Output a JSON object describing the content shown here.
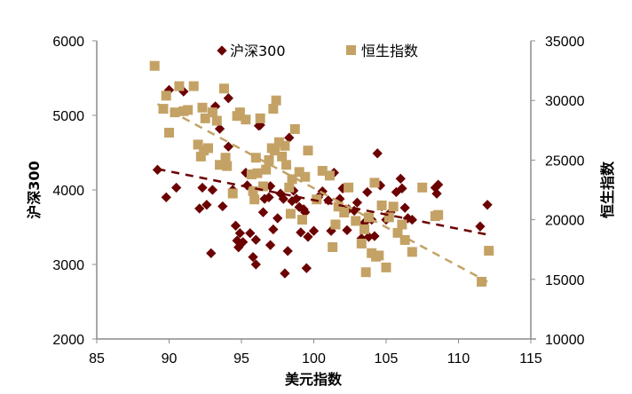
{
  "chart_data": {
    "type": "scatter",
    "title": "",
    "xlabel": "美元指数",
    "ylabel": "沪深300",
    "y2label": "恒生指数",
    "xlim": [
      85,
      115
    ],
    "ylim": [
      2000,
      6000
    ],
    "y2lim": [
      10000,
      35000
    ],
    "xticks": [
      85,
      90,
      95,
      100,
      105,
      110,
      115
    ],
    "yticks": [
      2000,
      3000,
      4000,
      5000,
      6000
    ],
    "y2ticks": [
      10000,
      15000,
      20000,
      25000,
      30000,
      35000
    ],
    "grid": false,
    "legend_position": "top",
    "legend": [
      "沪深300",
      "恒生指数"
    ],
    "colors": {
      "hs300": "#6b0000",
      "hsi": "#c4a265",
      "axis": "#8c8c8c"
    },
    "series": [
      {
        "name": "沪深300",
        "axis": "left",
        "marker": "diamond",
        "color": "#6b0000",
        "points": [
          [
            89.2,
            4270
          ],
          [
            89.8,
            3900
          ],
          [
            90.5,
            4030
          ],
          [
            90.0,
            5340
          ],
          [
            91.0,
            5320
          ],
          [
            92.1,
            3750
          ],
          [
            92.3,
            4030
          ],
          [
            92.6,
            3800
          ],
          [
            92.9,
            3150
          ],
          [
            93.0,
            4000
          ],
          [
            93.2,
            5120
          ],
          [
            93.5,
            4820
          ],
          [
            93.7,
            3780
          ],
          [
            94.1,
            5230
          ],
          [
            94.1,
            4580
          ],
          [
            94.4,
            4000
          ],
          [
            94.6,
            3520
          ],
          [
            94.7,
            3320
          ],
          [
            94.8,
            3230
          ],
          [
            94.9,
            3420
          ],
          [
            95.1,
            3300
          ],
          [
            95.3,
            4230
          ],
          [
            95.4,
            4060
          ],
          [
            95.6,
            3420
          ],
          [
            95.8,
            3100
          ],
          [
            96.0,
            3330
          ],
          [
            96.0,
            3000
          ],
          [
            96.2,
            4860
          ],
          [
            96.3,
            4870
          ],
          [
            96.5,
            3700
          ],
          [
            96.6,
            3880
          ],
          [
            96.9,
            3900
          ],
          [
            97.0,
            4050
          ],
          [
            97.0,
            3260
          ],
          [
            97.2,
            3470
          ],
          [
            97.5,
            3620
          ],
          [
            97.7,
            3950
          ],
          [
            97.9,
            3880
          ],
          [
            98.0,
            2880
          ],
          [
            98.2,
            3180
          ],
          [
            98.3,
            4700
          ],
          [
            98.5,
            3850
          ],
          [
            98.6,
            3990
          ],
          [
            98.8,
            3880
          ],
          [
            99.0,
            3770
          ],
          [
            99.1,
            3430
          ],
          [
            99.3,
            3740
          ],
          [
            99.4,
            3700
          ],
          [
            99.5,
            2950
          ],
          [
            99.6,
            3370
          ],
          [
            100.0,
            3450
          ],
          [
            100.3,
            3900
          ],
          [
            100.6,
            3980
          ],
          [
            101.0,
            3860
          ],
          [
            101.2,
            3450
          ],
          [
            101.4,
            4230
          ],
          [
            101.8,
            3880
          ],
          [
            102.0,
            4020
          ],
          [
            102.3,
            3460
          ],
          [
            102.4,
            3740
          ],
          [
            102.8,
            3720
          ],
          [
            103.0,
            3830
          ],
          [
            103.3,
            3350
          ],
          [
            103.5,
            3560
          ],
          [
            103.7,
            3970
          ],
          [
            103.8,
            3370
          ],
          [
            104.0,
            3600
          ],
          [
            104.2,
            3380
          ],
          [
            104.4,
            4490
          ],
          [
            104.6,
            4060
          ],
          [
            104.7,
            3780
          ],
          [
            105.0,
            3600
          ],
          [
            105.3,
            3700
          ],
          [
            105.7,
            3970
          ],
          [
            106.0,
            4150
          ],
          [
            106.1,
            4020
          ],
          [
            106.3,
            3760
          ],
          [
            106.5,
            3620
          ],
          [
            106.8,
            3600
          ],
          [
            108.4,
            4030
          ],
          [
            108.5,
            3950
          ],
          [
            108.6,
            4070
          ],
          [
            111.5,
            3510
          ],
          [
            112.0,
            3800
          ]
        ]
      },
      {
        "name": "恒生指数",
        "axis": "right",
        "marker": "square",
        "color": "#c4a265",
        "points": [
          [
            89.0,
            32900
          ],
          [
            89.6,
            29300
          ],
          [
            89.8,
            30400
          ],
          [
            90.0,
            27300
          ],
          [
            90.4,
            29000
          ],
          [
            90.7,
            31200
          ],
          [
            91.0,
            29100
          ],
          [
            91.3,
            29200
          ],
          [
            91.7,
            31200
          ],
          [
            92.0,
            26300
          ],
          [
            92.2,
            25300
          ],
          [
            92.3,
            29400
          ],
          [
            92.4,
            25800
          ],
          [
            92.5,
            28500
          ],
          [
            92.7,
            26000
          ],
          [
            93.0,
            29000
          ],
          [
            93.3,
            28300
          ],
          [
            93.5,
            24600
          ],
          [
            93.8,
            31000
          ],
          [
            93.9,
            25200
          ],
          [
            94.0,
            24500
          ],
          [
            94.4,
            22200
          ],
          [
            94.7,
            28700
          ],
          [
            94.9,
            29000
          ],
          [
            95.3,
            28400
          ],
          [
            95.7,
            23800
          ],
          [
            95.8,
            22400
          ],
          [
            95.9,
            21700
          ],
          [
            96.0,
            25200
          ],
          [
            96.1,
            23900
          ],
          [
            96.3,
            28500
          ],
          [
            96.5,
            22800
          ],
          [
            96.7,
            24200
          ],
          [
            96.9,
            25000
          ],
          [
            97.1,
            26000
          ],
          [
            97.2,
            29300
          ],
          [
            97.3,
            25800
          ],
          [
            97.4,
            30000
          ],
          [
            97.6,
            26500
          ],
          [
            97.8,
            25300
          ],
          [
            98.0,
            26200
          ],
          [
            98.1,
            24600
          ],
          [
            98.3,
            22700
          ],
          [
            98.4,
            20500
          ],
          [
            98.5,
            23400
          ],
          [
            98.7,
            27600
          ],
          [
            99.0,
            24000
          ],
          [
            99.2,
            20000
          ],
          [
            99.4,
            23600
          ],
          [
            99.6,
            25800
          ],
          [
            100.2,
            21700
          ],
          [
            100.6,
            24100
          ],
          [
            101.1,
            23700
          ],
          [
            101.3,
            17700
          ],
          [
            101.5,
            19600
          ],
          [
            101.7,
            21100
          ],
          [
            102.1,
            20600
          ],
          [
            102.4,
            22700
          ],
          [
            102.9,
            19900
          ],
          [
            103.3,
            18000
          ],
          [
            103.5,
            19200
          ],
          [
            103.6,
            15600
          ],
          [
            103.8,
            20200
          ],
          [
            104.0,
            17200
          ],
          [
            104.2,
            23100
          ],
          [
            104.3,
            16900
          ],
          [
            104.5,
            17000
          ],
          [
            104.7,
            21200
          ],
          [
            105.0,
            16000
          ],
          [
            105.2,
            20200
          ],
          [
            105.5,
            21100
          ],
          [
            105.8,
            18900
          ],
          [
            106.1,
            19600
          ],
          [
            106.3,
            18300
          ],
          [
            106.8,
            17300
          ],
          [
            107.5,
            22700
          ],
          [
            108.4,
            20300
          ],
          [
            108.6,
            20400
          ],
          [
            111.6,
            14800
          ],
          [
            112.1,
            17400
          ]
        ]
      }
    ],
    "trendlines": [
      {
        "series": "沪深300",
        "style": "dashed",
        "color": "#6b0000",
        "from": [
          89.2,
          4280
        ],
        "to": [
          112.0,
          3400
        ]
      },
      {
        "series": "恒生指数",
        "style": "dashed",
        "color": "#c4a265",
        "from": [
          89.2,
          29700
        ],
        "to": [
          112.0,
          14800
        ]
      }
    ]
  }
}
